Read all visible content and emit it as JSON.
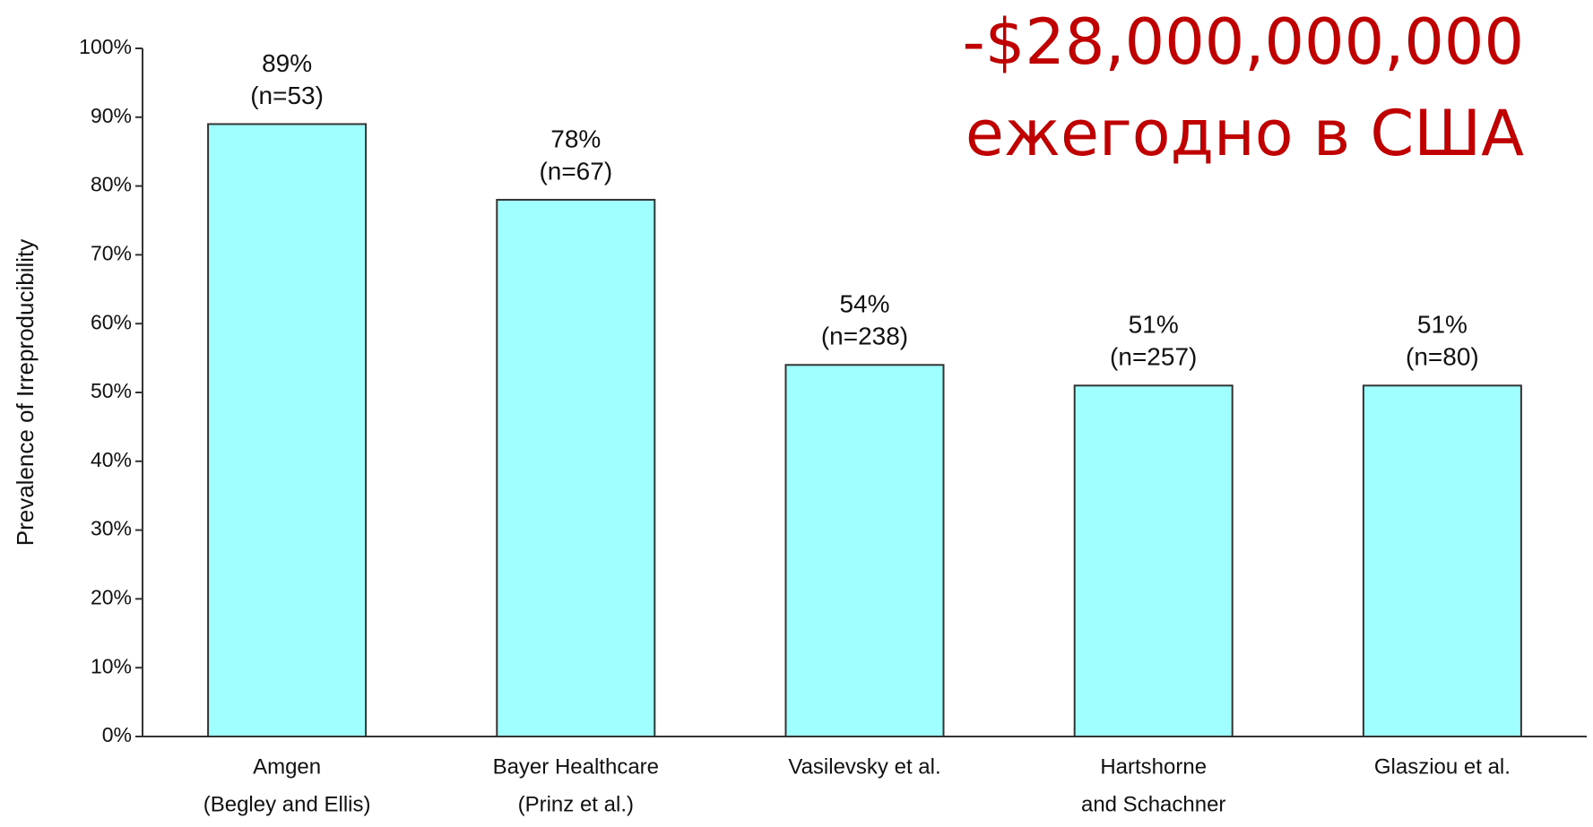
{
  "chart_data": {
    "type": "bar",
    "y_label": "Prevalence of Irreproducibility",
    "categories": [
      [
        "Amgen",
        "(Begley and Ellis)"
      ],
      [
        "Bayer Healthcare",
        "(Prinz et al.)"
      ],
      [
        "Vasilevsky et al."
      ],
      [
        "Hartshorne",
        "and Schachner"
      ],
      [
        "Glasziou et al."
      ]
    ],
    "values": [
      89,
      78,
      54,
      51,
      51
    ],
    "value_labels": [
      "89%",
      "78%",
      "54%",
      "51%",
      "51%"
    ],
    "n_labels": [
      "(n=53)",
      "(n=67)",
      "(n=238)",
      "(n=257)",
      "(n=80)"
    ],
    "color": "#a0ffff",
    "ylim": [
      0,
      100
    ],
    "yticks": [
      {
        "value": 0,
        "label": "0%"
      },
      {
        "value": 10,
        "label": "10%"
      },
      {
        "value": 20,
        "label": "20%"
      },
      {
        "value": 30,
        "label": "30%"
      },
      {
        "value": 40,
        "label": "40%"
      },
      {
        "value": 50,
        "label": "50%"
      },
      {
        "value": 60,
        "label": "60%"
      },
      {
        "value": 70,
        "label": "70%"
      },
      {
        "value": 80,
        "label": "80%"
      },
      {
        "value": 90,
        "label": "90%"
      },
      {
        "value": 100,
        "label": "100%"
      }
    ],
    "annotations": [
      "-$28,000,000,000",
      "ежегодно в США"
    ]
  }
}
